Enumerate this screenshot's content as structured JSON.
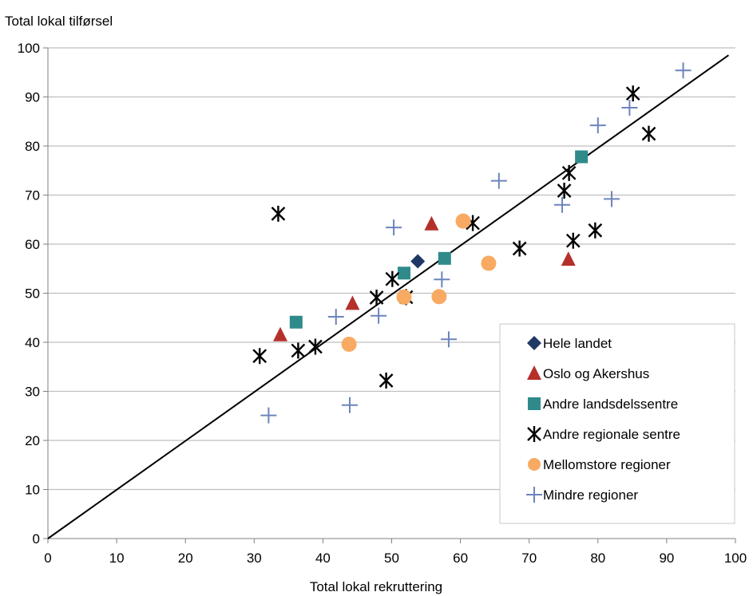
{
  "chart_data": {
    "type": "scatter",
    "title": "",
    "ylabel": "Total lokal tilførsel",
    "xlabel": "Total lokal rekruttering",
    "xlim": [
      0,
      100
    ],
    "ylim": [
      0,
      100
    ],
    "xticks": [
      0,
      10,
      20,
      30,
      40,
      50,
      60,
      70,
      80,
      90,
      100
    ],
    "yticks": [
      0,
      10,
      20,
      30,
      40,
      50,
      60,
      70,
      80,
      90,
      100
    ],
    "grid": "horizontal",
    "legend_position": "bottom-right",
    "reference_line": {
      "from": [
        0,
        0
      ],
      "to": [
        99,
        98.5
      ]
    },
    "series": [
      {
        "name": "Hele landet",
        "marker": "diamond",
        "color": "#1f3864",
        "points": [
          [
            53.8,
            56.5
          ]
        ]
      },
      {
        "name": "Oslo og Akershus",
        "marker": "triangle",
        "color": "#b5302a",
        "points": [
          [
            33.8,
            41.5
          ],
          [
            44.3,
            47.9
          ],
          [
            55.8,
            64.1
          ],
          [
            75.7,
            56.9
          ]
        ]
      },
      {
        "name": "Andre landsdelssentre",
        "marker": "square",
        "color": "#2e8b8a",
        "points": [
          [
            36.1,
            44.1
          ],
          [
            51.8,
            54.1
          ],
          [
            57.7,
            57.1
          ],
          [
            77.6,
            77.8
          ]
        ]
      },
      {
        "name": "Andre regionale sentre",
        "marker": "asterisk",
        "color": "#000000",
        "points": [
          [
            30.8,
            37.2
          ],
          [
            33.5,
            66.2
          ],
          [
            36.4,
            38.3
          ],
          [
            38.9,
            39.1
          ],
          [
            47.8,
            49.1
          ],
          [
            49.2,
            32.2
          ],
          [
            50.1,
            52.9
          ],
          [
            52.1,
            49.2
          ],
          [
            61.8,
            64.3
          ],
          [
            68.6,
            59.1
          ],
          [
            75.1,
            70.9
          ],
          [
            75.8,
            74.5
          ],
          [
            76.4,
            60.7
          ],
          [
            79.6,
            62.8
          ],
          [
            85.1,
            90.7
          ],
          [
            87.4,
            82.5
          ]
        ]
      },
      {
        "name": "Mellomstore regioner",
        "marker": "circle",
        "color": "#f8aa62",
        "points": [
          [
            43.8,
            39.6
          ],
          [
            51.8,
            49.2
          ],
          [
            56.9,
            49.3
          ],
          [
            60.4,
            64.7
          ],
          [
            64.1,
            56.1
          ]
        ]
      },
      {
        "name": "Mindre regioner",
        "marker": "plus",
        "color": "#6b84bd",
        "points": [
          [
            32.1,
            25.1
          ],
          [
            41.9,
            45.2
          ],
          [
            43.9,
            27.2
          ],
          [
            48.1,
            45.4
          ],
          [
            50.3,
            63.4
          ],
          [
            57.3,
            52.8
          ],
          [
            58.3,
            40.6
          ],
          [
            65.6,
            72.9
          ],
          [
            74.8,
            68.0
          ],
          [
            80.0,
            84.2
          ],
          [
            82.0,
            69.2
          ],
          [
            84.6,
            87.8
          ],
          [
            92.4,
            95.4
          ]
        ]
      }
    ]
  }
}
